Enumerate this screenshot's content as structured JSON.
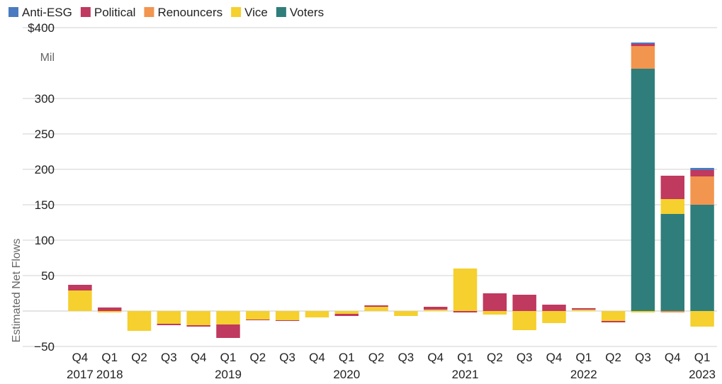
{
  "chart_data": {
    "type": "bar",
    "stacked": true,
    "title": "",
    "xlabel": "",
    "ylabel": "Estimated Net Flows",
    "yunit": "Mil",
    "ylim": [
      -55,
      400
    ],
    "yticks": [
      -50,
      50,
      100,
      150,
      200,
      250,
      300,
      400
    ],
    "ytick_labels": [
      "−50",
      "50",
      "100",
      "150",
      "200",
      "250",
      "300",
      "$400"
    ],
    "grid": true,
    "legend_position": "top-left",
    "categories": [
      "Q4 2017",
      "Q1 2018",
      "Q2 2018",
      "Q3 2018",
      "Q4 2018",
      "Q1 2019",
      "Q2 2019",
      "Q3 2019",
      "Q4 2019",
      "Q1 2020",
      "Q2 2020",
      "Q3 2020",
      "Q4 2020",
      "Q1 2021",
      "Q2 2021",
      "Q3 2021",
      "Q4 2021",
      "Q1 2022",
      "Q2 2022",
      "Q3 2022",
      "Q4 2022",
      "Q1 2023"
    ],
    "x_quarter_labels": [
      "Q4",
      "Q1",
      "Q2",
      "Q3",
      "Q4",
      "Q1",
      "Q2",
      "Q3",
      "Q4",
      "Q1",
      "Q2",
      "Q3",
      "Q4",
      "Q1",
      "Q2",
      "Q3",
      "Q4",
      "Q1",
      "Q2",
      "Q3",
      "Q4",
      "Q1"
    ],
    "x_year_labels": [
      "2017",
      "2018",
      "",
      "",
      "",
      "2019",
      "",
      "",
      "",
      "2020",
      "",
      "",
      "",
      "2021",
      "",
      "",
      "",
      "2022",
      "",
      "",
      "",
      "2023"
    ],
    "series": [
      {
        "name": "Voters",
        "color": "#2f7e7c",
        "values": [
          0,
          0,
          0,
          0,
          0,
          0,
          0,
          0,
          0,
          0,
          0,
          0,
          0,
          0,
          0,
          0,
          0,
          0,
          0,
          342,
          137,
          150
        ]
      },
      {
        "name": "Vice",
        "color": "#f5d02e",
        "values": [
          29,
          -2,
          -28,
          -18,
          -20,
          -19,
          -12,
          -13,
          -9,
          -4,
          6,
          -7,
          2,
          60,
          -5,
          -27,
          -17,
          2,
          -14,
          -2,
          21,
          -22
        ]
      },
      {
        "name": "Renouncers",
        "color": "#f2954f",
        "values": [
          0,
          0,
          0,
          0,
          0,
          0,
          0,
          0,
          0,
          0,
          0,
          0,
          0,
          0,
          0,
          0,
          0,
          0,
          0,
          32,
          -2,
          40
        ]
      },
      {
        "name": "Political",
        "color": "#c0395f",
        "values": [
          8,
          5,
          0,
          -2,
          -2,
          -19,
          -1,
          -1,
          0,
          -3,
          2,
          0,
          4,
          -2,
          25,
          23,
          9,
          2,
          -2,
          3,
          33,
          9
        ]
      },
      {
        "name": "Anti-ESG",
        "color": "#4a7bc0",
        "values": [
          0,
          0,
          0,
          0,
          0,
          0,
          0,
          0,
          0,
          0,
          0,
          0,
          0,
          0,
          0,
          0,
          0,
          0,
          0,
          2,
          0,
          3
        ]
      }
    ],
    "legend_order": [
      "Anti-ESG",
      "Political",
      "Renouncers",
      "Vice",
      "Voters"
    ]
  }
}
